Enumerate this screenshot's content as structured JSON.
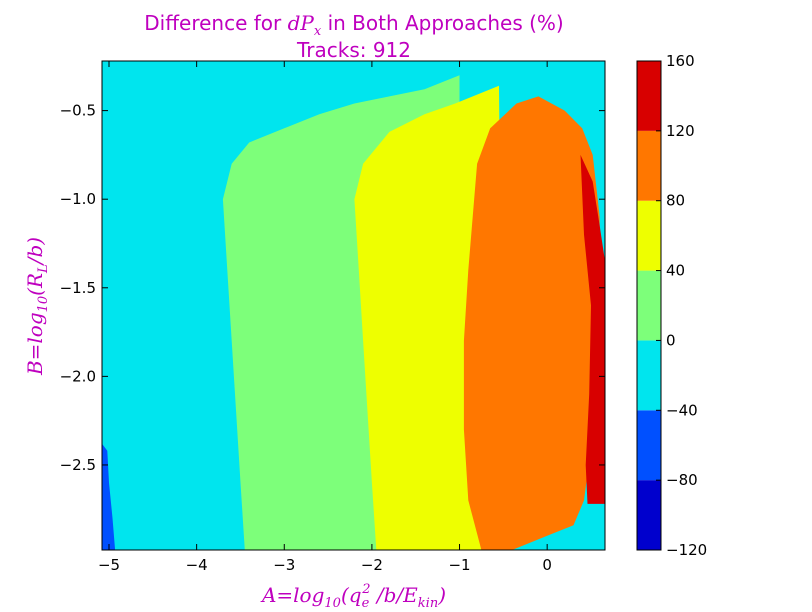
{
  "chart_data": {
    "type": "heatmap",
    "title": "Difference for dPx in Both Approaches (%)",
    "title_parts": {
      "prefix": "Difference for ",
      "math": "dP",
      "math_sub": "x",
      "suffix": " in Both Approaches (%)"
    },
    "subtitle": "Tracks: 912",
    "xlabel": "A=log10(qe2 /b/Ekin)",
    "xlabel_parts": {
      "a": "A=log",
      "a_sub": "10",
      "b": "(q",
      "b_sub": "e",
      "b_sup": "2",
      "c": " /b/E",
      "c_sub": "kin",
      "d": ")"
    },
    "ylabel": "B=log10(RL/b)",
    "ylabel_parts": {
      "a": "B=log",
      "a_sub": "10",
      "b": "(R",
      "b_sub": "L",
      "c": "/b)"
    },
    "xlim": [
      -5.08,
      0.66
    ],
    "ylim": [
      -2.98,
      -0.22
    ],
    "x_ticks": [
      -5,
      -4,
      -3,
      -2,
      -1,
      0
    ],
    "x_tick_labels": [
      "−5",
      "−4",
      "−3",
      "−2",
      "−1",
      "0"
    ],
    "y_ticks": [
      -2.5,
      -2.0,
      -1.5,
      -1.0,
      -0.5
    ],
    "y_tick_labels": [
      "−2.5",
      "−2.0",
      "−1.5",
      "−1.0",
      "−0.5"
    ],
    "colorbar": {
      "levels": [
        -120,
        -80,
        -40,
        0,
        40,
        80,
        120,
        160
      ],
      "tick_labels": [
        "−120",
        "−80",
        "−40",
        "0",
        "40",
        "80",
        "120",
        "160"
      ],
      "colors": [
        "#0000cd",
        "#0050ff",
        "#00e5ee",
        "#7dff7a",
        "#eeff00",
        "#ff7700",
        "#d80000"
      ]
    },
    "regions": [
      {
        "range": [
          -40,
          0
        ],
        "color": "#00e5ee",
        "polygon": [
          [
            -5.08,
            -2.98
          ],
          [
            0.66,
            -2.98
          ],
          [
            0.66,
            -0.22
          ],
          [
            -5.08,
            -0.22
          ]
        ]
      },
      {
        "range": [
          0,
          40
        ],
        "color": "#7dff7a",
        "polygon": [
          [
            -3.45,
            -2.98
          ],
          [
            -3.5,
            -2.6
          ],
          [
            -3.55,
            -2.2
          ],
          [
            -3.6,
            -1.8
          ],
          [
            -3.65,
            -1.4
          ],
          [
            -3.7,
            -1.0
          ],
          [
            -3.6,
            -0.8
          ],
          [
            -3.4,
            -0.68
          ],
          [
            -3.0,
            -0.6
          ],
          [
            -2.6,
            -0.52
          ],
          [
            -2.2,
            -0.46
          ],
          [
            -1.8,
            -0.42
          ],
          [
            -1.4,
            -0.38
          ],
          [
            -1.2,
            -0.34
          ],
          [
            -1.0,
            -0.3
          ],
          [
            -1.0,
            -2.98
          ]
        ]
      },
      {
        "range": [
          40,
          80
        ],
        "color": "#eeff00",
        "polygon": [
          [
            -1.95,
            -2.98
          ],
          [
            -2.0,
            -2.6
          ],
          [
            -2.05,
            -2.2
          ],
          [
            -2.1,
            -1.8
          ],
          [
            -2.15,
            -1.4
          ],
          [
            -2.2,
            -1.0
          ],
          [
            -2.1,
            -0.8
          ],
          [
            -1.8,
            -0.62
          ],
          [
            -1.4,
            -0.52
          ],
          [
            -1.05,
            -0.46
          ],
          [
            -0.75,
            -0.4
          ],
          [
            -0.55,
            -0.36
          ],
          [
            -0.5,
            -2.98
          ]
        ]
      },
      {
        "range": [
          80,
          120
        ],
        "color": "#ff7700",
        "polygon": [
          [
            -0.4,
            -2.98
          ],
          [
            0.0,
            -2.9
          ],
          [
            0.3,
            -2.84
          ],
          [
            0.42,
            -2.7
          ],
          [
            0.5,
            -2.4
          ],
          [
            0.56,
            -2.0
          ],
          [
            0.6,
            -1.5
          ],
          [
            0.6,
            -1.1
          ],
          [
            0.52,
            -0.75
          ],
          [
            0.4,
            -0.6
          ],
          [
            0.2,
            -0.5
          ],
          [
            -0.1,
            -0.42
          ],
          [
            -0.35,
            -0.46
          ],
          [
            -0.65,
            -0.6
          ],
          [
            -0.8,
            -0.8
          ],
          [
            -0.85,
            -1.1
          ],
          [
            -0.9,
            -1.4
          ],
          [
            -0.95,
            -1.8
          ],
          [
            -0.95,
            -2.3
          ],
          [
            -0.9,
            -2.7
          ],
          [
            -0.75,
            -2.98
          ]
        ]
      },
      {
        "range": [
          120,
          160
        ],
        "color": "#d80000",
        "polygon": [
          [
            0.46,
            -2.72
          ],
          [
            0.66,
            -2.72
          ],
          [
            0.66,
            -1.35
          ],
          [
            0.6,
            -1.15
          ],
          [
            0.52,
            -0.9
          ],
          [
            0.38,
            -0.75
          ],
          [
            0.42,
            -1.2
          ],
          [
            0.5,
            -1.6
          ],
          [
            0.48,
            -2.1
          ],
          [
            0.44,
            -2.5
          ]
        ]
      },
      {
        "range": [
          -80,
          -40
        ],
        "color": "#0050ff",
        "polygon": [
          [
            -5.08,
            -2.98
          ],
          [
            -4.93,
            -2.98
          ],
          [
            -4.96,
            -2.8
          ],
          [
            -5.0,
            -2.6
          ],
          [
            -5.02,
            -2.42
          ],
          [
            -5.08,
            -2.38
          ]
        ]
      }
    ]
  }
}
